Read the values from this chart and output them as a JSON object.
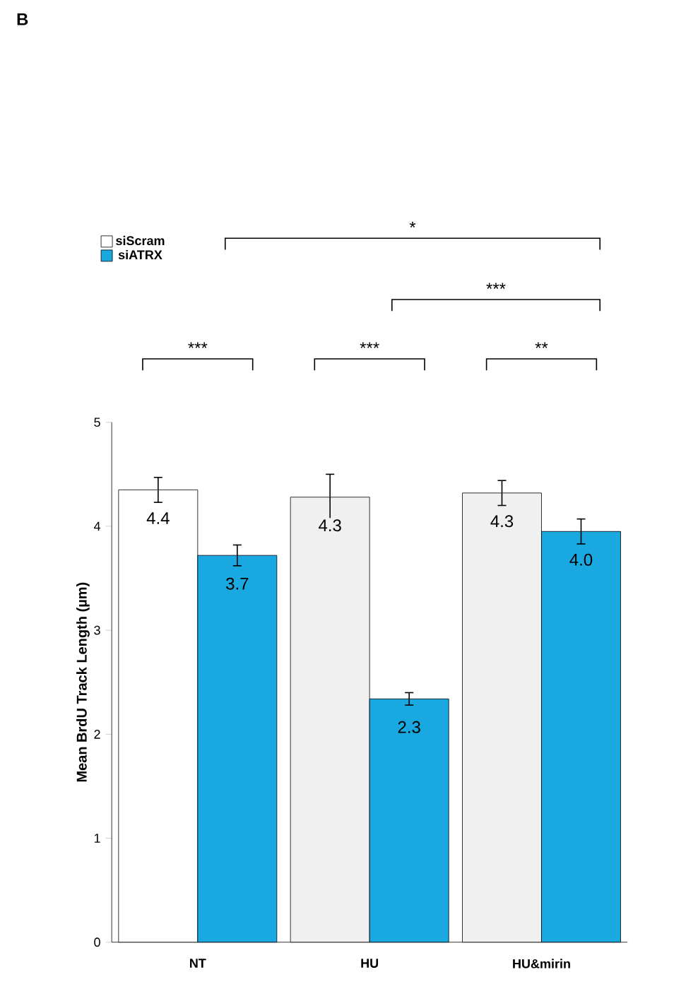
{
  "chart_data": {
    "type": "bar",
    "ylabel": "Mean BrdU Track Length (µm)",
    "categories": [
      "NT",
      "HU",
      "HU&mirin"
    ],
    "series": [
      {
        "name": "siScram",
        "colors": [
          "#ffffff",
          "#f0f0f0",
          "#f0f0f0"
        ],
        "values": [
          4.35,
          4.28,
          4.32
        ],
        "errors": [
          0.12,
          0.22,
          0.12
        ],
        "value_labels": [
          "4.4",
          "4.3",
          "4.3"
        ]
      },
      {
        "name": "siATRX",
        "color": "#1aa8e0",
        "values": [
          3.72,
          2.34,
          3.95
        ],
        "errors": [
          0.1,
          0.06,
          0.12
        ],
        "value_labels": [
          "3.7",
          "2.3",
          "4.0"
        ]
      }
    ],
    "ylim": [
      0,
      5
    ],
    "yticks": [
      0,
      1,
      2,
      3,
      4,
      5
    ],
    "legend": "top left",
    "annotations": [
      "B",
      "***",
      "***",
      "**",
      "***",
      "*"
    ]
  }
}
